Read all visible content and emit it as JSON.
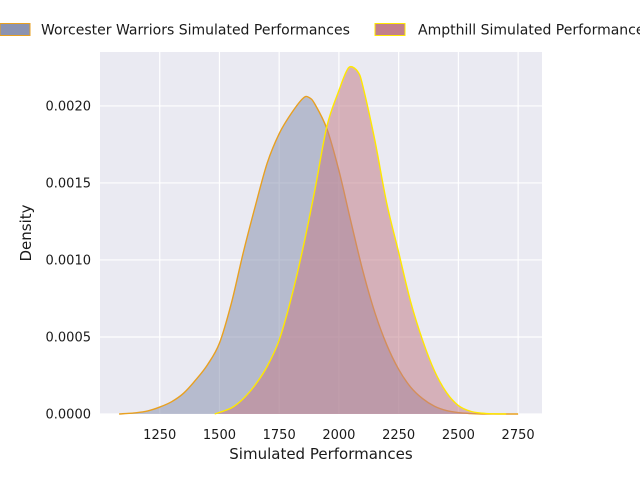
{
  "chart_data": {
    "type": "area",
    "title": "",
    "xlabel": "Simulated Performances",
    "ylabel": "Density",
    "xlim": [
      1000,
      2850
    ],
    "ylim": [
      0,
      0.00235
    ],
    "xticks": [
      1250,
      1500,
      1750,
      2000,
      2250,
      2500,
      2750
    ],
    "xtick_labels": [
      "1250",
      "1500",
      "1750",
      "2000",
      "2250",
      "2500",
      "2750"
    ],
    "yticks": [
      0,
      0.0005,
      0.001,
      0.0015,
      0.002
    ],
    "ytick_labels": [
      "0.0000",
      "0.0005",
      "0.0010",
      "0.0015",
      "0.0020"
    ],
    "grid": true,
    "legend_position": "top",
    "series": [
      {
        "name": "Worcester Warriors Simulated Performances",
        "fill": "#8b93b1",
        "edge": "#e8a020",
        "x": [
          1080,
          1150,
          1200,
          1250,
          1300,
          1350,
          1400,
          1450,
          1500,
          1550,
          1600,
          1650,
          1700,
          1750,
          1800,
          1850,
          1875,
          1900,
          1950,
          2000,
          2050,
          2100,
          2150,
          2200,
          2250,
          2300,
          2350,
          2400,
          2450,
          2500,
          2550,
          2600,
          2650,
          2700,
          2750
        ],
        "y": [
          0.0,
          8e-06,
          2e-05,
          4.5e-05,
          8e-05,
          0.000135,
          0.00022,
          0.00032,
          0.00046,
          0.00072,
          0.00105,
          0.00135,
          0.00163,
          0.00182,
          0.00195,
          0.00205,
          0.002055,
          0.00201,
          0.00185,
          0.00158,
          0.00125,
          0.00093,
          0.00066,
          0.00045,
          0.00029,
          0.000175,
          0.0001,
          5e-05,
          2.2e-05,
          9e-06,
          3e-06,
          0.0,
          0.0,
          0.0,
          0.0
        ]
      },
      {
        "name": "Ampthill Simulated Performances",
        "fill": "#c2808b",
        "edge": "#ffe800",
        "x": [
          1480,
          1550,
          1600,
          1650,
          1700,
          1750,
          1800,
          1850,
          1900,
          1950,
          2000,
          2030,
          2050,
          2080,
          2100,
          2150,
          2200,
          2250,
          2300,
          2350,
          2400,
          2450,
          2500,
          2550,
          2600,
          2650,
          2700
        ],
        "y": [
          0.0,
          4e-05,
          0.0001,
          0.00019,
          0.00031,
          0.00048,
          0.00075,
          0.00108,
          0.00146,
          0.00187,
          0.0021,
          0.00222,
          0.002255,
          0.00222,
          0.00213,
          0.00178,
          0.00137,
          0.00105,
          0.00073,
          0.00048,
          0.00028,
          0.00014,
          5.5e-05,
          1.8e-05,
          5e-06,
          1e-06,
          0.0
        ]
      }
    ]
  }
}
